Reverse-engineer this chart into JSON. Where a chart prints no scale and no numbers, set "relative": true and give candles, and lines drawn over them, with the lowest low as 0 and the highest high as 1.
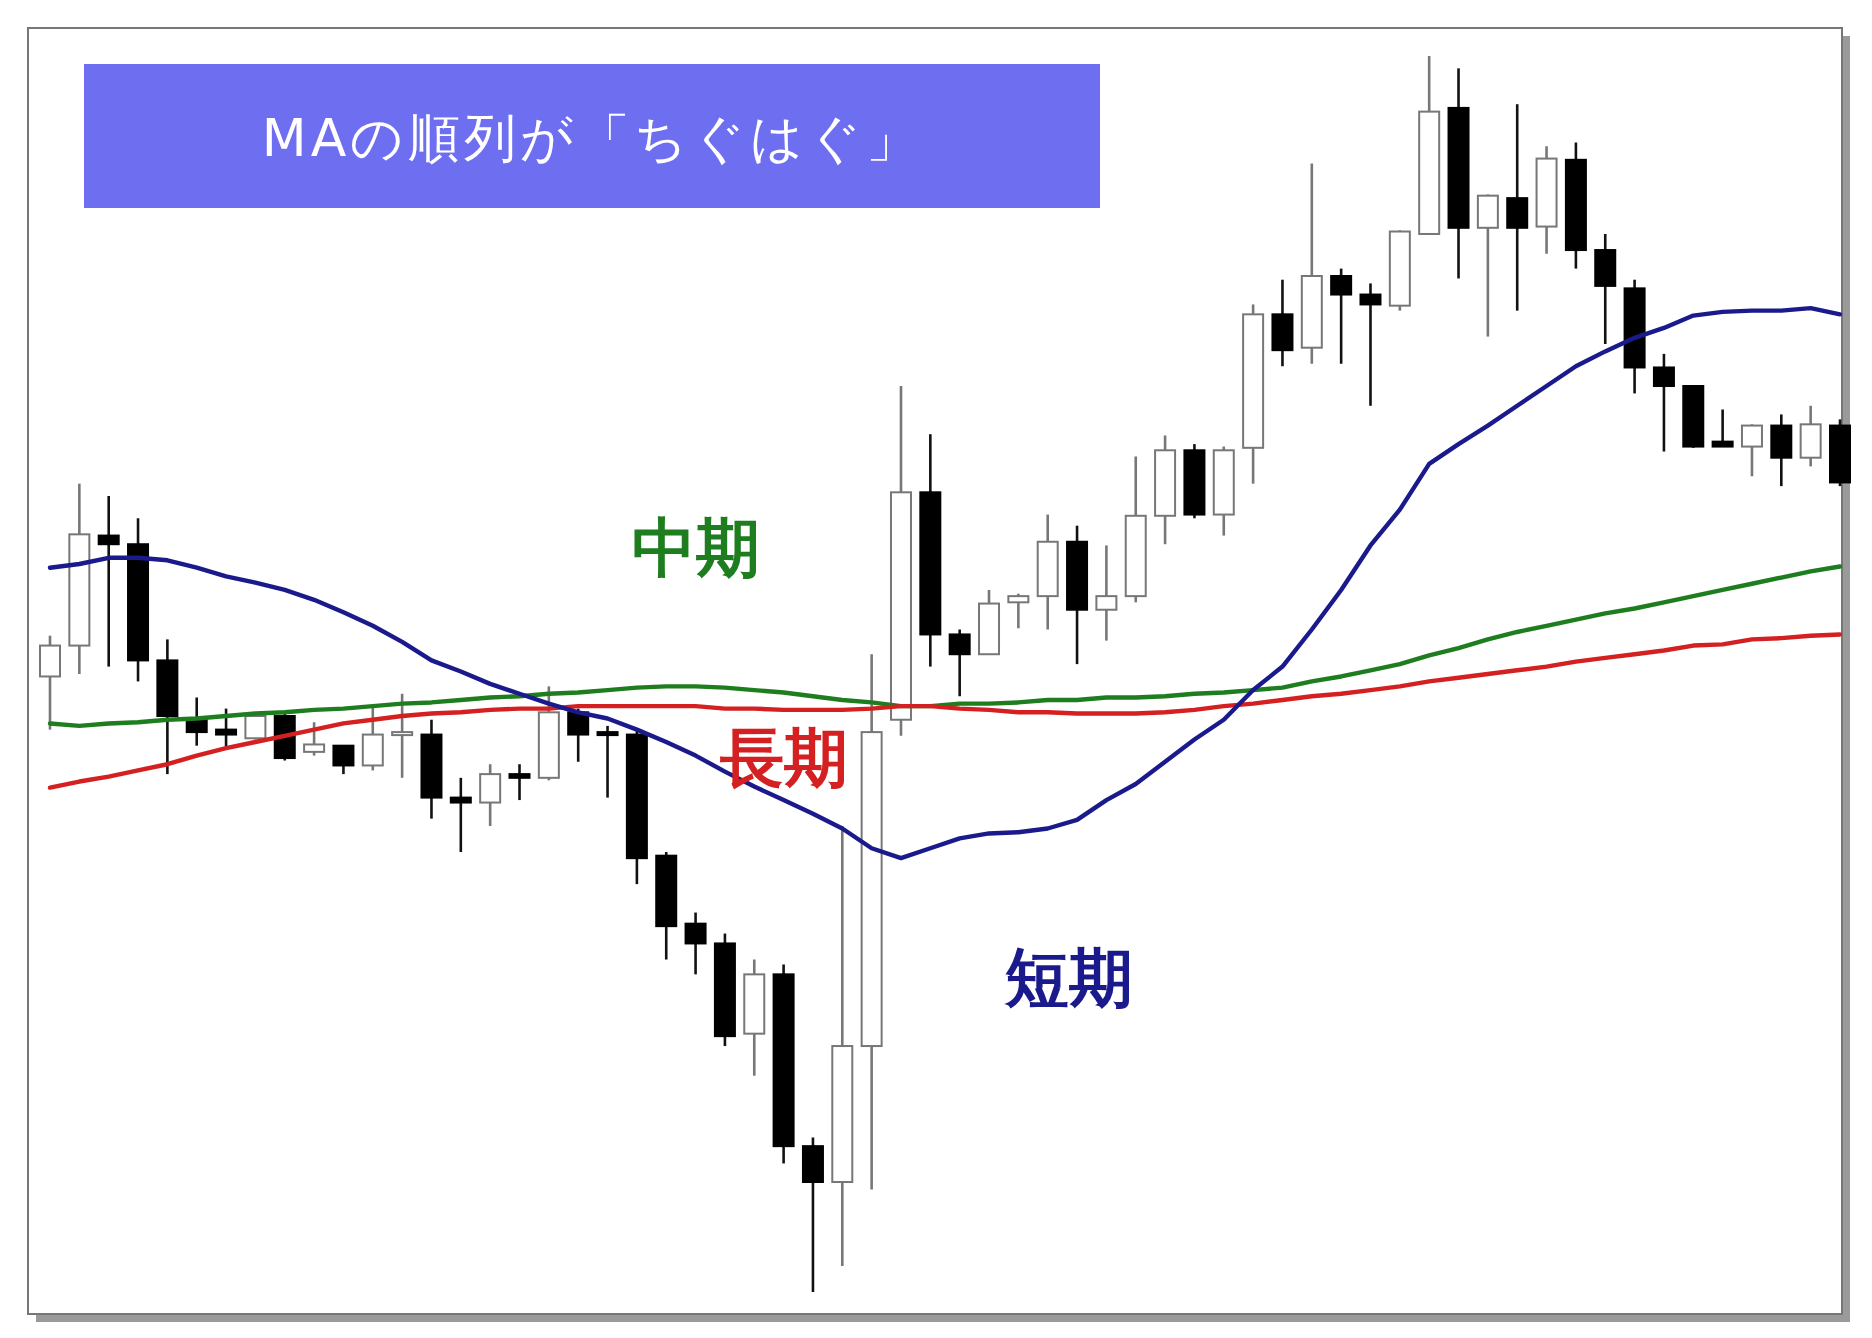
{
  "chart_data": {
    "type": "candlestick",
    "relative": true,
    "title": "MAの順列が「ちぐはぐ」",
    "categories": [
      null,
      null,
      null,
      null,
      null,
      null,
      null,
      null,
      null,
      null,
      null,
      null,
      null,
      null,
      null,
      null,
      null,
      null,
      null,
      null,
      null,
      null,
      null,
      null,
      null,
      null,
      null,
      null,
      null,
      null,
      null,
      null,
      null,
      null,
      null,
      null,
      null,
      null,
      null,
      null,
      null,
      null,
      null,
      null,
      null,
      null,
      null,
      null,
      null,
      null,
      null,
      null,
      null,
      null,
      null,
      null,
      null,
      null,
      null,
      null,
      null,
      null
    ],
    "ohlc": [
      [
        0.498,
        0.531,
        0.455,
        0.523
      ],
      [
        0.523,
        0.654,
        0.5,
        0.613
      ],
      [
        0.612,
        0.644,
        0.506,
        0.605
      ],
      [
        0.605,
        0.626,
        0.494,
        0.511
      ],
      [
        0.511,
        0.528,
        0.419,
        0.466
      ],
      [
        0.463,
        0.481,
        0.442,
        0.453
      ],
      [
        0.455,
        0.472,
        0.439,
        0.451
      ],
      [
        0.448,
        0.469,
        0.447,
        0.466
      ],
      [
        0.466,
        0.468,
        0.43,
        0.432
      ],
      [
        0.437,
        0.461,
        0.434,
        0.443
      ],
      [
        0.442,
        0.442,
        0.419,
        0.426
      ],
      [
        0.426,
        0.474,
        0.422,
        0.451
      ],
      [
        0.451,
        0.484,
        0.416,
        0.453
      ],
      [
        0.451,
        0.463,
        0.383,
        0.4
      ],
      [
        0.4,
        0.416,
        0.356,
        0.396
      ],
      [
        0.396,
        0.427,
        0.377,
        0.419
      ],
      [
        0.419,
        0.427,
        0.398,
        0.416
      ],
      [
        0.416,
        0.49,
        0.414,
        0.469
      ],
      [
        0.469,
        0.472,
        0.429,
        0.451
      ],
      [
        0.453,
        0.458,
        0.4,
        0.451
      ],
      [
        0.451,
        0.455,
        0.33,
        0.351
      ],
      [
        0.353,
        0.356,
        0.269,
        0.296
      ],
      [
        0.298,
        0.307,
        0.257,
        0.282
      ],
      [
        0.282,
        0.29,
        0.199,
        0.207
      ],
      [
        0.209,
        0.269,
        0.175,
        0.257
      ],
      [
        0.257,
        0.265,
        0.104,
        0.118
      ],
      [
        0.118,
        0.125,
        0,
        0.089
      ],
      [
        0.089,
        0.377,
        0.021,
        0.199
      ],
      [
        0.199,
        0.516,
        0.083,
        0.453
      ],
      [
        0.463,
        0.733,
        0.45,
        0.647
      ],
      [
        0.647,
        0.694,
        0.506,
        0.532
      ],
      [
        0.532,
        0.536,
        0.482,
        0.516
      ],
      [
        0.516,
        0.568,
        0.516,
        0.557
      ],
      [
        0.558,
        0.565,
        0.537,
        0.563
      ],
      [
        0.563,
        0.629,
        0.536,
        0.607
      ],
      [
        0.607,
        0.62,
        0.508,
        0.552
      ],
      [
        0.552,
        0.604,
        0.527,
        0.563
      ],
      [
        0.563,
        0.676,
        0.558,
        0.628
      ],
      [
        0.628,
        0.693,
        0.605,
        0.681
      ],
      [
        0.681,
        0.686,
        0.626,
        0.629
      ],
      [
        0.629,
        0.684,
        0.612,
        0.681
      ],
      [
        0.683,
        0.799,
        0.654,
        0.791
      ],
      [
        0.791,
        0.819,
        0.749,
        0.762
      ],
      [
        0.764,
        0.913,
        0.751,
        0.822
      ],
      [
        0.822,
        0.828,
        0.751,
        0.807
      ],
      [
        0.807,
        0.816,
        0.717,
        0.799
      ],
      [
        0.798,
        0.859,
        0.794,
        0.858
      ],
      [
        0.856,
        1,
        0.856,
        0.955
      ],
      [
        0.958,
        0.99,
        0.82,
        0.861
      ],
      [
        0.861,
        0.888,
        0.773,
        0.887
      ],
      [
        0.885,
        0.961,
        0.794,
        0.861
      ],
      [
        0.862,
        0.927,
        0.84,
        0.917
      ],
      [
        0.916,
        0.93,
        0.828,
        0.843
      ],
      [
        0.843,
        0.856,
        0.767,
        0.814
      ],
      [
        0.812,
        0.819,
        0.727,
        0.748
      ],
      [
        0.748,
        0.759,
        0.68,
        0.733
      ],
      [
        0.733,
        0.733,
        0.683,
        0.684
      ],
      [
        0.688,
        0.714,
        0.684,
        0.684
      ],
      [
        0.684,
        0.702,
        0.66,
        0.701
      ],
      [
        0.701,
        0.71,
        0.652,
        0.675
      ],
      [
        0.675,
        0.717,
        0.668,
        0.702
      ],
      [
        0.701,
        0.706,
        0.652,
        0.655
      ]
    ],
    "series": [
      {
        "type": "line",
        "name": "中期",
        "color": "#1e7d1e",
        "values": [
          0.46,
          0.458,
          0.46,
          0.461,
          0.463,
          0.464,
          0.466,
          0.468,
          0.469,
          0.471,
          0.472,
          0.474,
          0.476,
          0.477,
          0.479,
          0.481,
          0.482,
          0.484,
          0.485,
          0.487,
          0.489,
          0.49,
          0.49,
          0.489,
          0.487,
          0.485,
          0.482,
          0.479,
          0.477,
          0.474,
          0.474,
          0.476,
          0.476,
          0.477,
          0.479,
          0.479,
          0.481,
          0.481,
          0.482,
          0.484,
          0.485,
          0.487,
          0.489,
          0.494,
          0.498,
          0.503,
          0.508,
          0.515,
          0.521,
          0.528,
          0.534,
          0.539,
          0.544,
          0.549,
          0.553,
          0.558,
          0.563,
          0.568,
          0.573,
          0.578,
          0.583,
          0.587
        ]
      },
      {
        "type": "line",
        "name": "長期",
        "color": "#d42020",
        "values": [
          0.408,
          0.413,
          0.417,
          0.422,
          0.427,
          0.434,
          0.44,
          0.445,
          0.45,
          0.455,
          0.46,
          0.463,
          0.466,
          0.468,
          0.469,
          0.471,
          0.472,
          0.472,
          0.474,
          0.474,
          0.474,
          0.474,
          0.474,
          0.472,
          0.472,
          0.471,
          0.471,
          0.471,
          0.472,
          0.474,
          0.474,
          0.472,
          0.471,
          0.469,
          0.469,
          0.468,
          0.468,
          0.468,
          0.469,
          0.471,
          0.474,
          0.476,
          0.479,
          0.482,
          0.484,
          0.487,
          0.49,
          0.494,
          0.497,
          0.5,
          0.503,
          0.506,
          0.51,
          0.513,
          0.516,
          0.519,
          0.523,
          0.524,
          0.528,
          0.529,
          0.531,
          0.532
        ]
      },
      {
        "type": "line",
        "name": "短期",
        "color": "#1a1a8c",
        "values": [
          0.586,
          0.589,
          0.594,
          0.594,
          0.592,
          0.586,
          0.579,
          0.574,
          0.568,
          0.56,
          0.55,
          0.539,
          0.526,
          0.511,
          0.502,
          0.492,
          0.484,
          0.476,
          0.469,
          0.464,
          0.455,
          0.445,
          0.434,
          0.421,
          0.409,
          0.398,
          0.387,
          0.375,
          0.359,
          0.351,
          0.359,
          0.367,
          0.371,
          0.372,
          0.375,
          0.382,
          0.398,
          0.411,
          0.429,
          0.447,
          0.463,
          0.487,
          0.506,
          0.536,
          0.568,
          0.604,
          0.633,
          0.67,
          0.686,
          0.701,
          0.717,
          0.733,
          0.749,
          0.761,
          0.772,
          0.78,
          0.79,
          0.793,
          0.794,
          0.794,
          0.796,
          0.791
        ]
      }
    ]
  }
}
